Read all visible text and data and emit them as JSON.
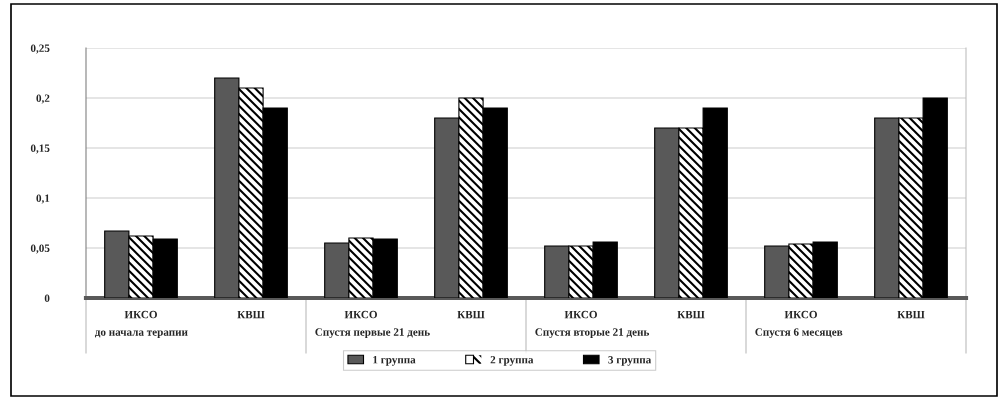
{
  "chart_data": {
    "type": "bar",
    "categories": [
      "ИКСО",
      "КВШ",
      "ИКСО",
      "КВШ",
      "ИКСО",
      "КВШ",
      "ИКСО",
      "КВШ"
    ],
    "series": [
      {
        "name": "1 группа",
        "color": "#595959",
        "values": [
          0.067,
          0.22,
          0.055,
          0.18,
          0.052,
          0.17,
          0.052,
          0.18
        ]
      },
      {
        "name": "2 группа",
        "color": "#ffffff",
        "values": [
          0.062,
          0.21,
          0.06,
          0.2,
          0.052,
          0.17,
          0.054,
          0.18
        ]
      },
      {
        "name": "3 группа",
        "color": "#000000",
        "values": [
          0.059,
          0.19,
          0.059,
          0.19,
          0.056,
          0.19,
          0.056,
          0.2
        ]
      }
    ],
    "ylim": [
      0,
      0.25
    ],
    "yticks": [
      0,
      {
        "value": 0.05,
        "label": "0,05"
      },
      {
        "value": 0.1,
        "label": "0,1"
      },
      {
        "value": 0.15,
        "label": "0,15"
      },
      {
        "value": 0.2,
        "label": "0,2"
      },
      {
        "value": 0.25,
        "label": "0,25"
      }
    ],
    "grid": "y",
    "legend": "bottom",
    "annotations": [
      "до начала терапии",
      "Спустя первые 21 день",
      "Спустя вторые 21 день",
      "Спустя 6 месяцев"
    ]
  }
}
